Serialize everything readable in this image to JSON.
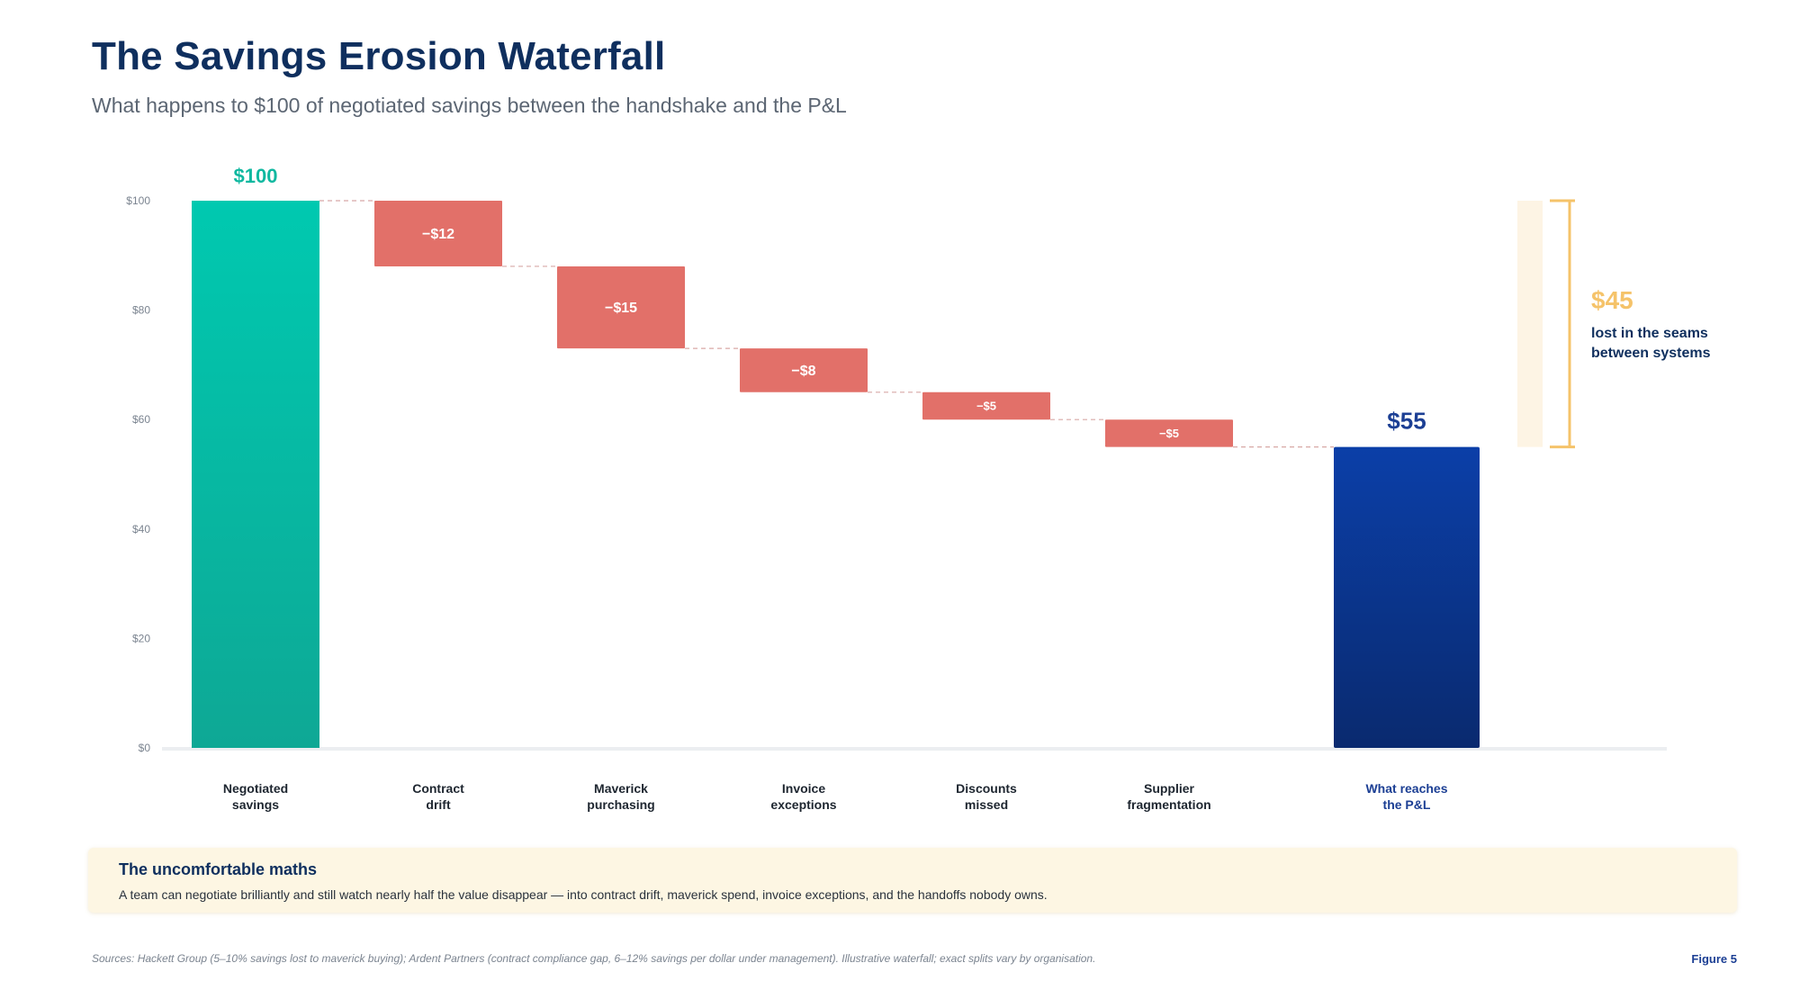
{
  "header": {
    "title": "The Savings Erosion Waterfall",
    "subtitle": "What happens to $100 of negotiated savings between the handshake and the P&L"
  },
  "chart_data": {
    "type": "bar",
    "subtype": "waterfall",
    "y_ticks": [
      "$100",
      "$80",
      "$60",
      "$40",
      "$20",
      "$0"
    ],
    "ylim": [
      0,
      100
    ],
    "grid": false,
    "start": {
      "label": [
        "Negotiated",
        "savings"
      ],
      "value": 100,
      "value_label": "$100"
    },
    "steps": [
      {
        "label": [
          "Contract",
          "drift"
        ],
        "value": -12,
        "value_label": "−$12"
      },
      {
        "label": [
          "Maverick",
          "purchasing"
        ],
        "value": -15,
        "value_label": "−$15"
      },
      {
        "label": [
          "Invoice",
          "exceptions"
        ],
        "value": -8,
        "value_label": "−$8"
      },
      {
        "label": [
          "Discounts",
          "missed"
        ],
        "value": -5,
        "value_label": "−$5"
      },
      {
        "label": [
          "Supplier",
          "fragmentation"
        ],
        "value": -5,
        "value_label": "−$5"
      }
    ],
    "end": {
      "label": [
        "What reaches",
        "the P&L"
      ],
      "value": 55,
      "value_label": "$55"
    },
    "callout": {
      "value": "$45",
      "text": "lost in the seams between systems",
      "range": [
        55,
        100
      ]
    },
    "colors": {
      "start_top": "#00c9b0",
      "start_bottom": "#0ea895",
      "loss": "#e27069",
      "end_top": "#0b3fa8",
      "end_bottom": "#0a2a6f",
      "callout": "#f5c36a",
      "connector": "#d8a8a6"
    }
  },
  "panel": {
    "title": "The uncomfortable maths",
    "body": "A team can negotiate brilliantly and still watch nearly half the value disappear — into contract drift, maverick spend, invoice exceptions, and the handoffs nobody owns."
  },
  "footer": {
    "sources": "Sources: Hackett Group (5–10% savings lost to maverick buying); Ardent Partners (contract compliance gap, 6–12% savings per dollar under management). Illustrative waterfall; exact splits vary by organisation.",
    "figure": "Figure 5"
  }
}
